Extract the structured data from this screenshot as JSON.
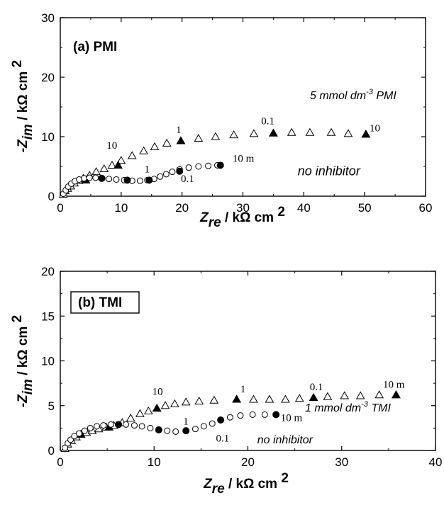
{
  "chart_data": [
    {
      "type": "scatter",
      "panel_label": "(a) PMI",
      "xlabel": {
        "symbol": "Z",
        "sub": "re",
        "unit": " / kΩ cm ",
        "sup": "2"
      },
      "ylabel": {
        "symbol": "-Z",
        "sub": "im",
        "unit": " / kΩ cm ",
        "sup": "2"
      },
      "xlim": [
        0,
        60
      ],
      "ylim": [
        0,
        30
      ],
      "xticks": [
        "0",
        "10",
        "20",
        "30",
        "40",
        "50",
        "60"
      ],
      "yticks": [
        "0",
        "10",
        "20",
        "30"
      ],
      "series": [
        {
          "name": "5 mmol dm-3 PMI",
          "label_main": "5 mmol dm",
          "label_sup": "-3",
          "label_tail": " PMI",
          "marker": "triangle-open",
          "x": [
            0.5,
            0.8,
            1.2,
            1.7,
            2.3,
            3.0,
            3.8,
            4.8,
            5.9,
            7.2,
            8.5,
            10.0,
            11.8,
            13.7,
            15.5,
            17.5,
            19.8,
            22.7,
            25.5,
            28.5,
            31.8,
            35.0,
            38.0,
            41.0,
            44.5,
            47.3,
            50.2
          ],
          "y": [
            0.3,
            0.9,
            1.3,
            1.7,
            2.2,
            2.6,
            3.0,
            3.5,
            4.1,
            4.6,
            5.2,
            6.0,
            6.8,
            7.6,
            8.3,
            8.9,
            9.3,
            9.7,
            10.0,
            10.3,
            10.5,
            10.6,
            10.7,
            10.7,
            10.7,
            10.5,
            10.4
          ]
        },
        {
          "name": "5 mmol dm-3 PMI markers",
          "marker": "triangle-filled",
          "x": [
            4.2,
            9.5,
            19.8,
            35.0,
            50.2
          ],
          "y": [
            2.7,
            5.2,
            9.3,
            10.6,
            10.4
          ]
        },
        {
          "name": "no inhibitor",
          "marker": "circle-open",
          "x": [
            0.5,
            0.9,
            1.3,
            1.8,
            2.4,
            3.1,
            3.9,
            4.8,
            5.8,
            6.9,
            8.0,
            9.2,
            10.5,
            11.8,
            13.1,
            14.3,
            15.4,
            16.4,
            17.4,
            18.4,
            19.6,
            21.1,
            22.7,
            24.3,
            25.8
          ],
          "y": [
            0.4,
            1.0,
            1.6,
            2.1,
            2.5,
            2.8,
            3.0,
            3.1,
            3.1,
            3.0,
            2.9,
            2.8,
            2.7,
            2.6,
            2.6,
            2.7,
            2.9,
            3.3,
            3.7,
            4.1,
            4.5,
            4.8,
            5.0,
            5.1,
            5.2
          ]
        },
        {
          "name": "no inhibitor markers",
          "marker": "circle-filled",
          "x": [
            6.8,
            11.0,
            14.6,
            19.6,
            26.3
          ],
          "y": [
            3.0,
            2.7,
            2.7,
            4.2,
            5.2
          ]
        }
      ],
      "annotations": [
        {
          "text": "10",
          "x": 7.6,
          "y": 8.0,
          "style": "freq"
        },
        {
          "text": "1",
          "x": 19.0,
          "y": 10.6,
          "style": "freq"
        },
        {
          "text": "0.1",
          "x": 33.0,
          "y": 12.1,
          "style": "freq"
        },
        {
          "text": "10",
          "x": 50.8,
          "y": 10.9,
          "style": "freq"
        },
        {
          "text": "1",
          "x": 13.8,
          "y": 4.0,
          "style": "freq"
        },
        {
          "text": "0.1",
          "x": 19.8,
          "y": 2.4,
          "style": "freq"
        },
        {
          "text": "10 m",
          "x": 28.3,
          "y": 5.8,
          "style": "freq"
        },
        {
          "text": "no inhibitor",
          "x": 39.0,
          "y": 3.5,
          "style": "italic-big"
        }
      ]
    },
    {
      "type": "scatter",
      "panel_label": "(b) TMI",
      "xlabel": {
        "symbol": "Z",
        "sub": "re",
        "unit": " / kΩ cm ",
        "sup": "2"
      },
      "ylabel": {
        "symbol": "-Z",
        "sub": "im",
        "unit": " / kΩ cm ",
        "sup": "2"
      },
      "xlim": [
        0,
        40
      ],
      "ylim": [
        0,
        20
      ],
      "xticks": [
        "0",
        "10",
        "20",
        "30",
        "40"
      ],
      "yticks": [
        "0",
        "5",
        "10",
        "15",
        "20"
      ],
      "series": [
        {
          "name": "1 mmol dm-3 TMI",
          "label_main": "1 mmol dm",
          "label_sup": "-3",
          "label_tail": " TMI",
          "marker": "triangle-open",
          "x": [
            0.5,
            0.8,
            1.2,
            1.7,
            2.2,
            2.8,
            3.4,
            4.1,
            4.9,
            5.7,
            6.6,
            7.5,
            8.5,
            9.4,
            10.3,
            11.2,
            12.2,
            13.4,
            14.8,
            16.4,
            18.8,
            20.6,
            22.3,
            24.0,
            25.5,
            27.0,
            28.5,
            30.3,
            32.0,
            34.0,
            35.8
          ],
          "y": [
            0.2,
            0.7,
            1.1,
            1.5,
            1.8,
            2.0,
            2.2,
            2.4,
            2.6,
            2.8,
            3.1,
            3.6,
            4.1,
            4.4,
            4.7,
            5.0,
            5.2,
            5.4,
            5.5,
            5.6,
            5.7,
            5.7,
            5.7,
            5.7,
            5.8,
            5.9,
            6.0,
            6.1,
            6.1,
            6.2,
            6.2
          ]
        },
        {
          "name": "1 mmol dm-3 TMI markers",
          "marker": "triangle-filled",
          "x": [
            2.2,
            5.2,
            10.3,
            18.8,
            27.0,
            35.8
          ],
          "y": [
            1.8,
            2.6,
            4.7,
            5.7,
            5.9,
            6.2
          ]
        },
        {
          "name": "no inhibitor",
          "marker": "circle-open",
          "x": [
            0.5,
            0.8,
            1.1,
            1.5,
            2.0,
            2.6,
            3.2,
            3.9,
            4.6,
            5.4,
            6.2,
            7.0,
            7.9,
            8.7,
            9.6,
            10.5,
            11.4,
            12.3,
            13.4,
            14.4,
            15.3,
            16.2,
            17.1,
            18.1,
            19.2,
            20.5,
            21.8,
            23.0
          ],
          "y": [
            0.3,
            0.8,
            1.2,
            1.6,
            1.9,
            2.2,
            2.5,
            2.7,
            2.8,
            2.9,
            2.9,
            2.9,
            2.8,
            2.7,
            2.5,
            2.3,
            2.2,
            2.1,
            2.2,
            2.4,
            2.7,
            3.0,
            3.4,
            3.7,
            3.9,
            4.0,
            4.0,
            4.0
          ]
        },
        {
          "name": "no inhibitor markers",
          "marker": "circle-filled",
          "x": [
            6.2,
            10.5,
            13.4,
            17.1,
            23.0
          ],
          "y": [
            2.9,
            2.3,
            2.2,
            3.4,
            4.0
          ]
        }
      ],
      "annotations": [
        {
          "text": "10",
          "x": 9.8,
          "y": 6.2,
          "style": "freq"
        },
        {
          "text": "1",
          "x": 19.2,
          "y": 6.5,
          "style": "freq"
        },
        {
          "text": "0.1",
          "x": 26.6,
          "y": 6.7,
          "style": "freq"
        },
        {
          "text": "10 m",
          "x": 34.4,
          "y": 7.0,
          "style": "freq"
        },
        {
          "text": "1",
          "x": 13.1,
          "y": 2.9,
          "style": "freq"
        },
        {
          "text": "0.1",
          "x": 16.6,
          "y": 1.0,
          "style": "freq"
        },
        {
          "text": "10 m",
          "x": 23.5,
          "y": 3.3,
          "style": "freq"
        },
        {
          "text": "no inhibitor",
          "x": 21.0,
          "y": 0.8,
          "style": "italic"
        }
      ]
    }
  ]
}
